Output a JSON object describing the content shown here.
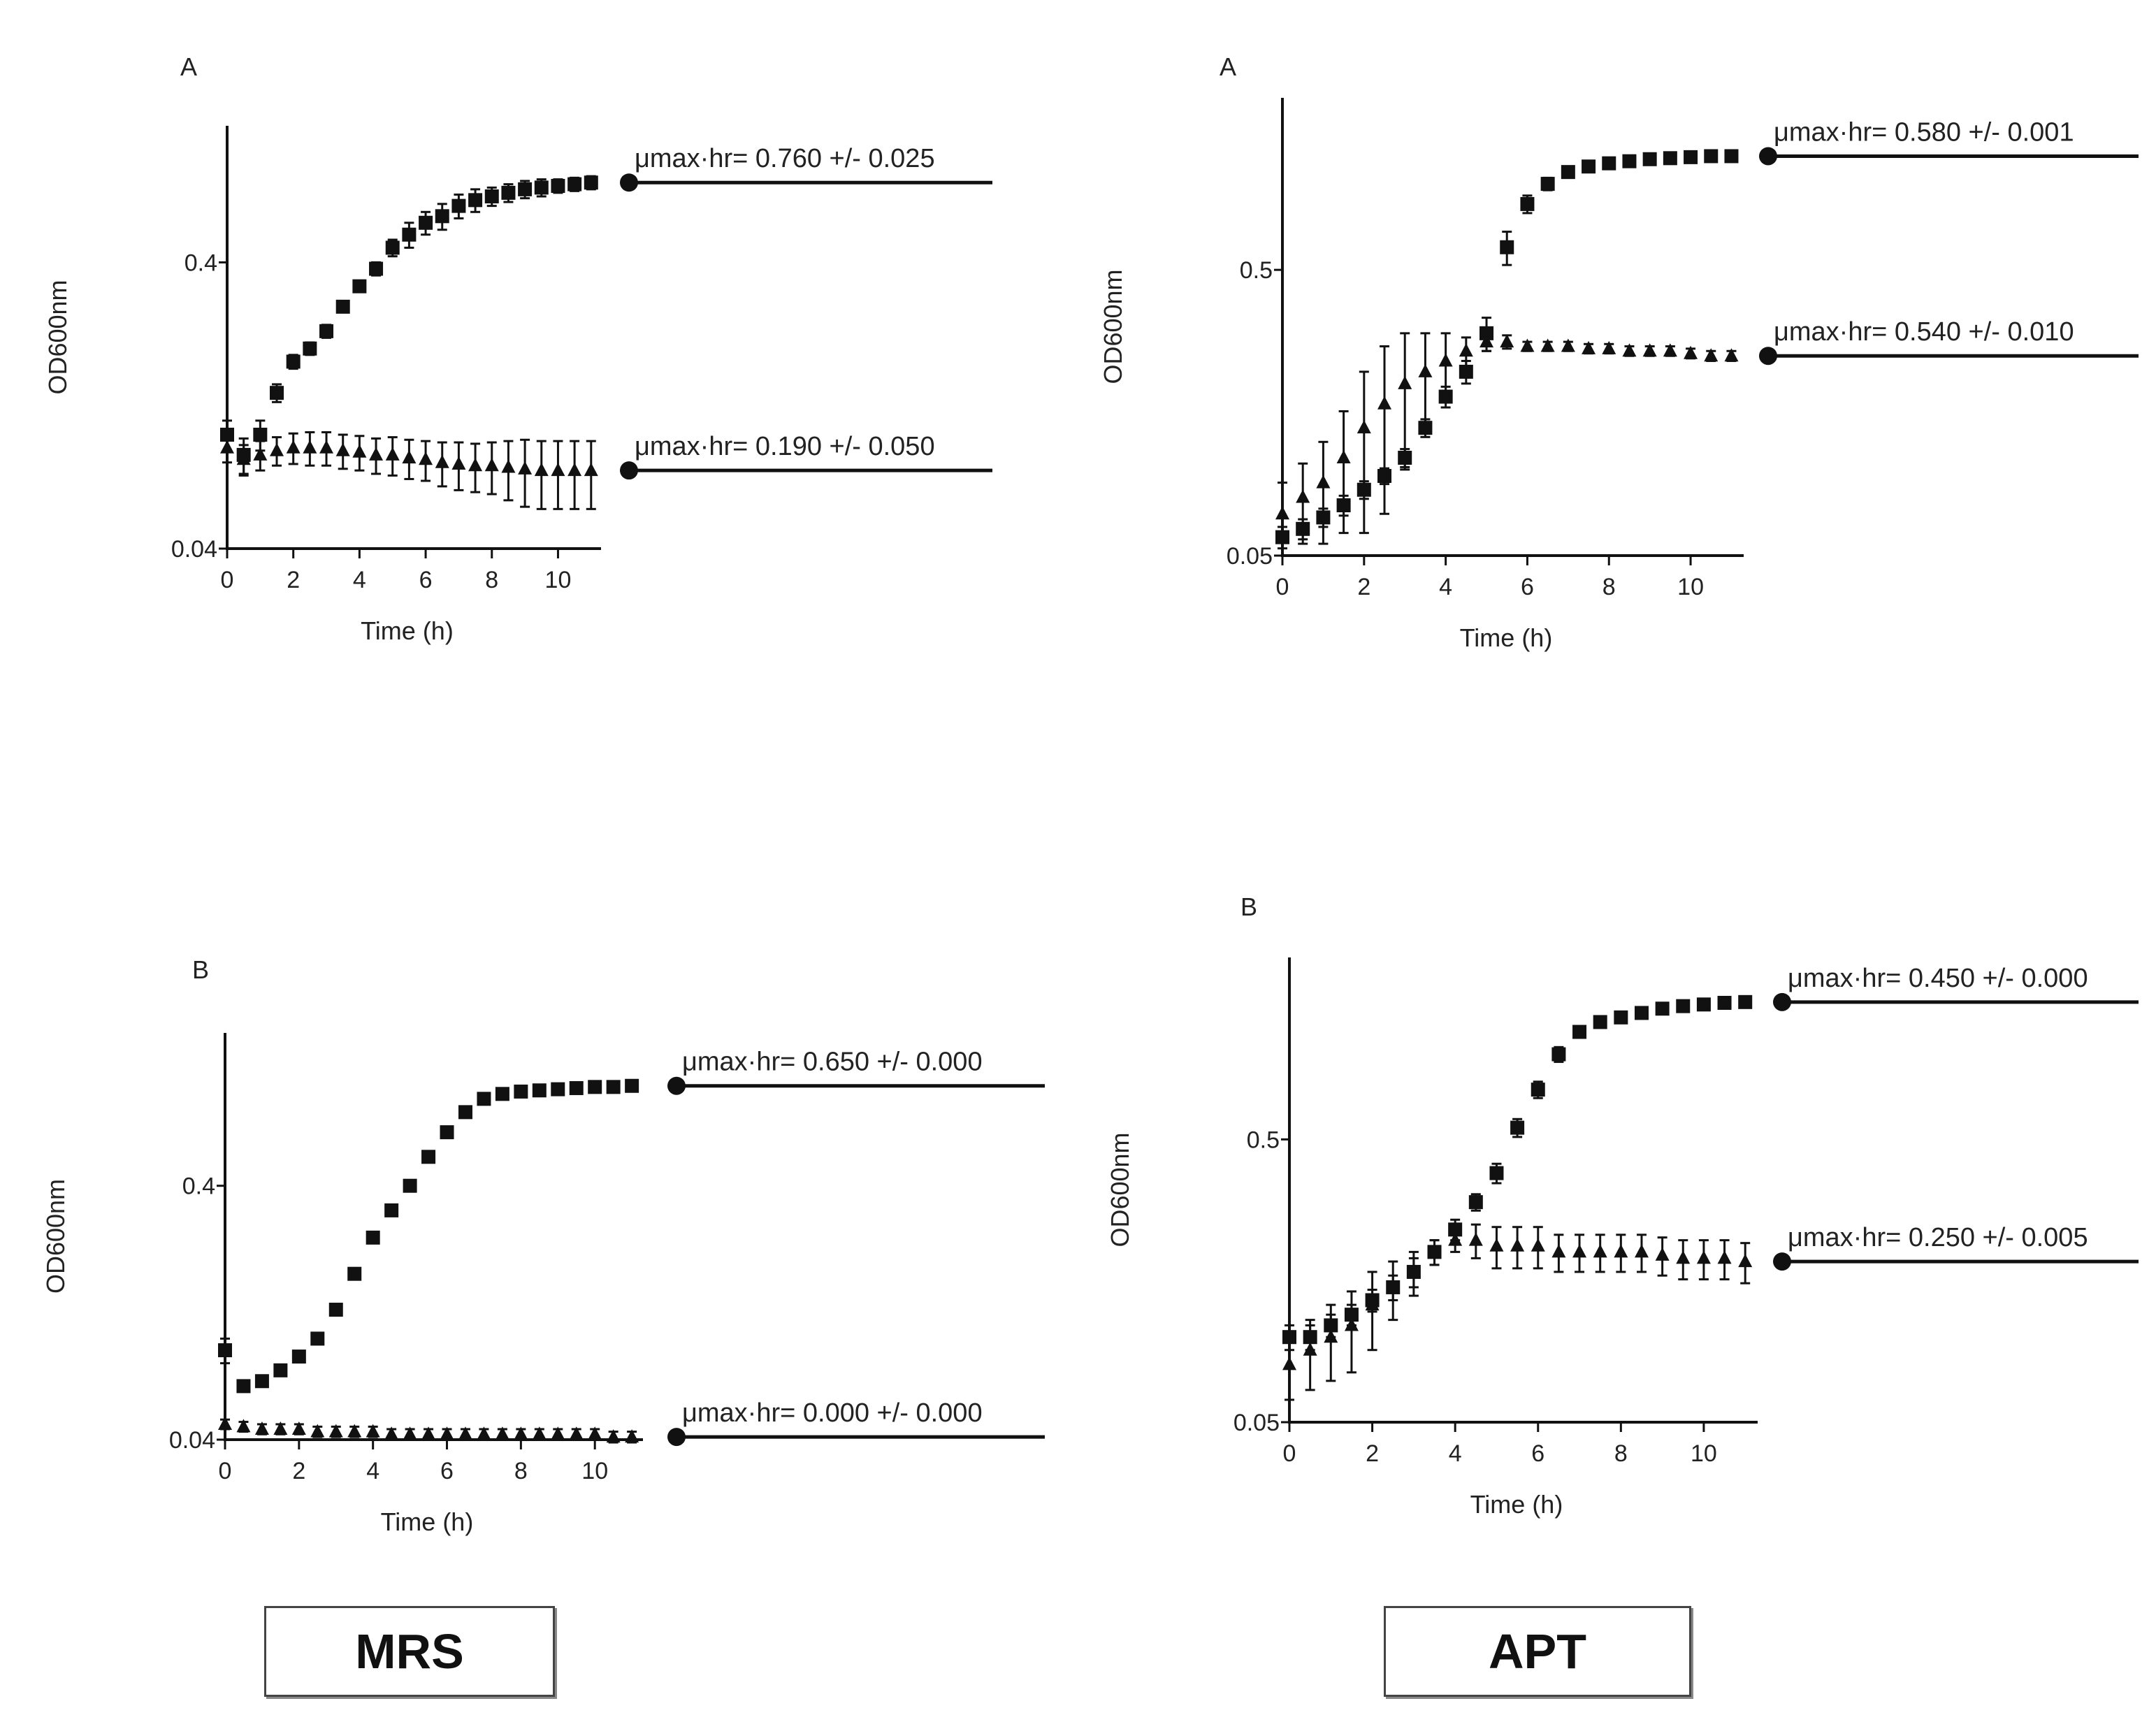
{
  "columns": [
    {
      "label": "MRS"
    },
    {
      "label": "APT"
    }
  ],
  "chart_data": [
    {
      "type": "scatter",
      "column": "MRS",
      "panel": "A",
      "xlabel": "Time (h)",
      "ylabel": "OD600nm",
      "x_ticks": [
        "0",
        "2",
        "4",
        "6",
        "8",
        "10"
      ],
      "y_ticks": [
        {
          "value": 0.04,
          "label": "0.04"
        },
        {
          "value": 0.4,
          "label": "0.4"
        }
      ],
      "y_scale": "log",
      "xlim": [
        0,
        11.3
      ],
      "ylim": [
        0.04,
        1.2
      ],
      "series": [
        {
          "name": "squares",
          "marker": "square",
          "rate_label": "μmax·hr= 0.760 +/- 0.025",
          "x": [
            0,
            0.5,
            1.0,
            1.5,
            2.0,
            2.5,
            3.0,
            3.5,
            4.0,
            4.5,
            5.0,
            5.5,
            6.0,
            6.5,
            7.0,
            7.5,
            8.0,
            8.5,
            9.0,
            9.5,
            10.0,
            10.5,
            11.0
          ],
          "y": [
            0.1,
            0.085,
            0.1,
            0.14,
            0.18,
            0.2,
            0.23,
            0.28,
            0.33,
            0.38,
            0.45,
            0.5,
            0.55,
            0.58,
            0.63,
            0.66,
            0.68,
            0.7,
            0.72,
            0.73,
            0.74,
            0.75,
            0.76
          ],
          "err": [
            0.012,
            0.012,
            0.012,
            0.01,
            0.01,
            0.01,
            0.012,
            0.012,
            0.015,
            0.02,
            0.03,
            0.05,
            0.05,
            0.06,
            0.06,
            0.06,
            0.05,
            0.05,
            0.05,
            0.05,
            0.04,
            0.04,
            0.04
          ]
        },
        {
          "name": "triangles",
          "marker": "triangle",
          "rate_label": "μmax·hr= 0.190 +/- 0.050",
          "x": [
            0,
            0.5,
            1.0,
            1.5,
            2.0,
            2.5,
            3.0,
            3.5,
            4.0,
            4.5,
            5.0,
            5.5,
            6.0,
            6.5,
            7.0,
            7.5,
            8.0,
            8.5,
            9.0,
            9.5,
            10.0,
            10.5,
            11.0
          ],
          "y": [
            0.09,
            0.082,
            0.085,
            0.088,
            0.09,
            0.09,
            0.09,
            0.088,
            0.087,
            0.085,
            0.085,
            0.083,
            0.082,
            0.08,
            0.079,
            0.078,
            0.078,
            0.077,
            0.076,
            0.075,
            0.075,
            0.075,
            0.075
          ],
          "err": [
            0.01,
            0.01,
            0.01,
            0.01,
            0.011,
            0.012,
            0.012,
            0.012,
            0.012,
            0.012,
            0.013,
            0.013,
            0.013,
            0.014,
            0.015,
            0.015,
            0.016,
            0.018,
            0.02,
            0.02,
            0.02,
            0.02,
            0.02
          ]
        }
      ]
    },
    {
      "type": "scatter",
      "column": "APT",
      "panel": "A",
      "xlabel": "Time (h)",
      "ylabel": "OD600nm",
      "x_ticks": [
        "0",
        "2",
        "4",
        "6",
        "8",
        "10"
      ],
      "y_ticks": [
        {
          "value": 0.05,
          "label": "0.05"
        },
        {
          "value": 0.5,
          "label": "0.5"
        }
      ],
      "y_scale": "log",
      "xlim": [
        0,
        11.3
      ],
      "ylim": [
        0.05,
        2.0
      ],
      "series": [
        {
          "name": "squares",
          "marker": "square",
          "rate_label": "μmax·hr= 0.580 +/- 0.001",
          "x": [
            0,
            0.5,
            1.0,
            1.5,
            2.0,
            2.5,
            3.0,
            3.5,
            4.0,
            4.5,
            5.0,
            5.5,
            6.0,
            6.5,
            7.0,
            7.5,
            8.0,
            8.5,
            9.0,
            9.5,
            10.0,
            10.5,
            11.0
          ],
          "y": [
            0.058,
            0.062,
            0.068,
            0.075,
            0.085,
            0.095,
            0.11,
            0.14,
            0.18,
            0.22,
            0.3,
            0.6,
            0.85,
            1.0,
            1.1,
            1.15,
            1.18,
            1.2,
            1.22,
            1.23,
            1.24,
            1.25,
            1.25
          ],
          "err": [
            0.005,
            0.005,
            0.005,
            0.006,
            0.006,
            0.006,
            0.008,
            0.01,
            0.015,
            0.02,
            0.04,
            0.08,
            0.06,
            0.05,
            0.04,
            0.03,
            0.03,
            0.03,
            0.03,
            0.03,
            0.03,
            0.03,
            0.03
          ]
        },
        {
          "name": "triangles",
          "marker": "triangle",
          "rate_label": "μmax·hr= 0.540 +/- 0.010",
          "x": [
            0,
            0.5,
            1.0,
            1.5,
            2.0,
            2.5,
            3.0,
            3.5,
            4.0,
            4.5,
            5.0,
            5.5,
            6.0,
            6.5,
            7.0,
            7.5,
            8.0,
            8.5,
            9.0,
            9.5,
            10.0,
            10.5,
            11.0
          ],
          "y": [
            0.07,
            0.08,
            0.09,
            0.11,
            0.14,
            0.17,
            0.2,
            0.22,
            0.24,
            0.26,
            0.28,
            0.28,
            0.27,
            0.27,
            0.27,
            0.265,
            0.265,
            0.26,
            0.26,
            0.26,
            0.255,
            0.25,
            0.25
          ],
          "err": [
            0.02,
            0.025,
            0.035,
            0.05,
            0.08,
            0.1,
            0.1,
            0.08,
            0.06,
            0.03,
            0.02,
            0.015,
            0.01,
            0.01,
            0.01,
            0.01,
            0.01,
            0.01,
            0.01,
            0.01,
            0.01,
            0.01,
            0.01
          ]
        }
      ]
    },
    {
      "type": "scatter",
      "column": "MRS",
      "panel": "B",
      "xlabel": "Time (h)",
      "ylabel": "OD600nm",
      "x_ticks": [
        "0",
        "2",
        "4",
        "6",
        "8",
        "10"
      ],
      "y_ticks": [
        {
          "value": 0.04,
          "label": "0.04"
        },
        {
          "value": 0.4,
          "label": "0.4"
        }
      ],
      "y_scale": "log",
      "xlim": [
        0,
        11.3
      ],
      "ylim": [
        0.04,
        1.6
      ],
      "series": [
        {
          "name": "squares",
          "marker": "square",
          "rate_label": "μmax·hr= 0.650 +/- 0.000",
          "x": [
            0,
            0.5,
            1.0,
            1.5,
            2.0,
            2.5,
            3.0,
            3.5,
            4.0,
            4.5,
            5.0,
            5.5,
            6.0,
            6.5,
            7.0,
            7.5,
            8.0,
            8.5,
            9.0,
            9.5,
            10.0,
            10.5,
            11.0
          ],
          "y": [
            0.09,
            0.065,
            0.068,
            0.075,
            0.085,
            0.1,
            0.13,
            0.18,
            0.25,
            0.32,
            0.4,
            0.52,
            0.65,
            0.78,
            0.88,
            0.92,
            0.94,
            0.95,
            0.96,
            0.97,
            0.98,
            0.98,
            0.99
          ],
          "err": [
            0.01,
            0.003,
            0.003,
            0.003,
            0.003,
            0.004,
            0.005,
            0.006,
            0.008,
            0.01,
            0.012,
            0.015,
            0.02,
            0.03,
            0.03,
            0.02,
            0.02,
            0.02,
            0.02,
            0.02,
            0.02,
            0.02,
            0.02
          ]
        },
        {
          "name": "triangles",
          "marker": "triangle",
          "rate_label": "μmax·hr= 0.000 +/- 0.000",
          "x": [
            0,
            0.5,
            1.0,
            1.5,
            2.0,
            2.5,
            3.0,
            3.5,
            4.0,
            4.5,
            5.0,
            5.5,
            6.0,
            6.5,
            7.0,
            7.5,
            8.0,
            8.5,
            9.0,
            9.5,
            10.0,
            10.5,
            11.0
          ],
          "y": [
            0.046,
            0.045,
            0.044,
            0.044,
            0.044,
            0.043,
            0.043,
            0.043,
            0.043,
            0.042,
            0.042,
            0.042,
            0.042,
            0.042,
            0.042,
            0.042,
            0.042,
            0.042,
            0.042,
            0.042,
            0.042,
            0.041,
            0.041
          ],
          "err": [
            0.002,
            0.002,
            0.002,
            0.002,
            0.002,
            0.002,
            0.002,
            0.002,
            0.002,
            0.002,
            0.002,
            0.002,
            0.002,
            0.002,
            0.002,
            0.002,
            0.002,
            0.002,
            0.002,
            0.002,
            0.002,
            0.002,
            0.002
          ]
        }
      ]
    },
    {
      "type": "scatter",
      "column": "APT",
      "panel": "B",
      "xlabel": "Time (h)",
      "ylabel": "OD600nm",
      "x_ticks": [
        "0",
        "2",
        "4",
        "6",
        "8",
        "10"
      ],
      "y_ticks": [
        {
          "value": 0.05,
          "label": "0.05"
        },
        {
          "value": 0.5,
          "label": "0.5"
        }
      ],
      "y_scale": "log",
      "xlim": [
        0,
        11.3
      ],
      "ylim": [
        0.05,
        2.2
      ],
      "series": [
        {
          "name": "squares",
          "marker": "square",
          "rate_label": "μmax·hr= 0.450 +/- 0.000",
          "x": [
            0,
            0.5,
            1.0,
            1.5,
            2.0,
            2.5,
            3.0,
            3.5,
            4.0,
            4.5,
            5.0,
            5.5,
            6.0,
            6.5,
            7.0,
            7.5,
            8.0,
            8.5,
            9.0,
            9.5,
            10.0,
            10.5,
            11.0
          ],
          "y": [
            0.1,
            0.1,
            0.11,
            0.12,
            0.135,
            0.15,
            0.17,
            0.2,
            0.24,
            0.3,
            0.38,
            0.55,
            0.75,
            1.0,
            1.2,
            1.3,
            1.35,
            1.4,
            1.45,
            1.48,
            1.5,
            1.52,
            1.53
          ],
          "err": [
            0.01,
            0.01,
            0.01,
            0.01,
            0.012,
            0.015,
            0.02,
            0.02,
            0.02,
            0.02,
            0.03,
            0.04,
            0.05,
            0.06,
            0.05,
            0.04,
            0.04,
            0.04,
            0.04,
            0.03,
            0.03,
            0.03,
            0.03
          ]
        },
        {
          "name": "triangles",
          "marker": "triangle",
          "rate_label": "μmax·hr= 0.250 +/- 0.005",
          "x": [
            0,
            0.5,
            1.0,
            1.5,
            2.0,
            2.5,
            3.0,
            3.5,
            4.0,
            4.5,
            5.0,
            5.5,
            6.0,
            6.5,
            7.0,
            7.5,
            8.0,
            8.5,
            9.0,
            9.5,
            10.0,
            10.5,
            11.0
          ],
          "y": [
            0.08,
            0.09,
            0.1,
            0.11,
            0.13,
            0.15,
            0.17,
            0.2,
            0.22,
            0.22,
            0.21,
            0.21,
            0.21,
            0.2,
            0.2,
            0.2,
            0.2,
            0.2,
            0.195,
            0.19,
            0.19,
            0.19,
            0.185
          ],
          "err": [
            0.02,
            0.025,
            0.03,
            0.035,
            0.04,
            0.035,
            0.03,
            0.02,
            0.02,
            0.03,
            0.035,
            0.035,
            0.035,
            0.03,
            0.03,
            0.03,
            0.03,
            0.03,
            0.03,
            0.03,
            0.03,
            0.03,
            0.03
          ]
        }
      ]
    }
  ]
}
